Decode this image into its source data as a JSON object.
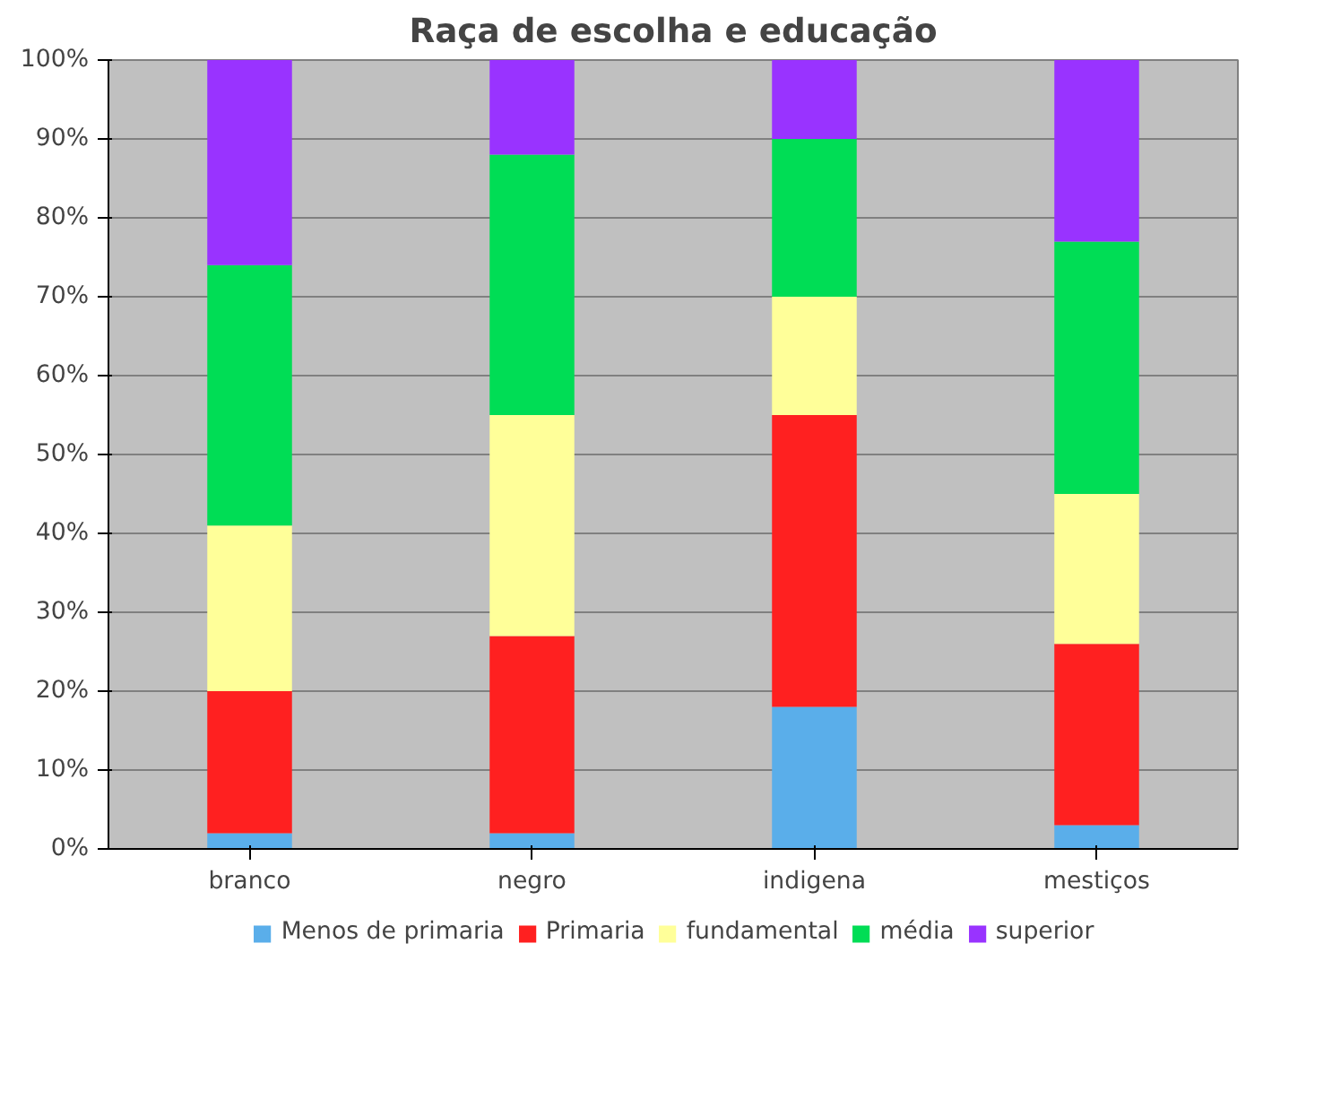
{
  "chart_data": {
    "type": "bar",
    "title": "Raça de escolha e educação",
    "stacked": true,
    "categories": [
      "branco",
      "negro",
      "indigena",
      "mestiços"
    ],
    "series": [
      {
        "name": "Menos de primaria",
        "color": "#5aaeea",
        "values": [
          2,
          2,
          18,
          3
        ]
      },
      {
        "name": "Primaria",
        "color": "#ff2020",
        "values": [
          18,
          25,
          37,
          23
        ]
      },
      {
        "name": "fundamental",
        "color": "#ffff99",
        "values": [
          21,
          28,
          15,
          19
        ]
      },
      {
        "name": "média",
        "color": "#00dd55",
        "values": [
          33,
          33,
          20,
          32
        ]
      },
      {
        "name": "superior",
        "color": "#9933ff",
        "values": [
          26,
          12,
          10,
          23
        ]
      }
    ],
    "ylim": [
      0,
      100
    ],
    "yticks": [
      {
        "value": 0,
        "label": "0%"
      },
      {
        "value": 10,
        "label": "10%"
      },
      {
        "value": 20,
        "label": "20%"
      },
      {
        "value": 30,
        "label": "30%"
      },
      {
        "value": 40,
        "label": "40%"
      },
      {
        "value": 50,
        "label": "50%"
      },
      {
        "value": 60,
        "label": "60%"
      },
      {
        "value": 70,
        "label": "70%"
      },
      {
        "value": 80,
        "label": "80%"
      },
      {
        "value": 90,
        "label": "90%"
      },
      {
        "value": 100,
        "label": "100%"
      }
    ],
    "grid": "y",
    "legend": "bottom"
  }
}
